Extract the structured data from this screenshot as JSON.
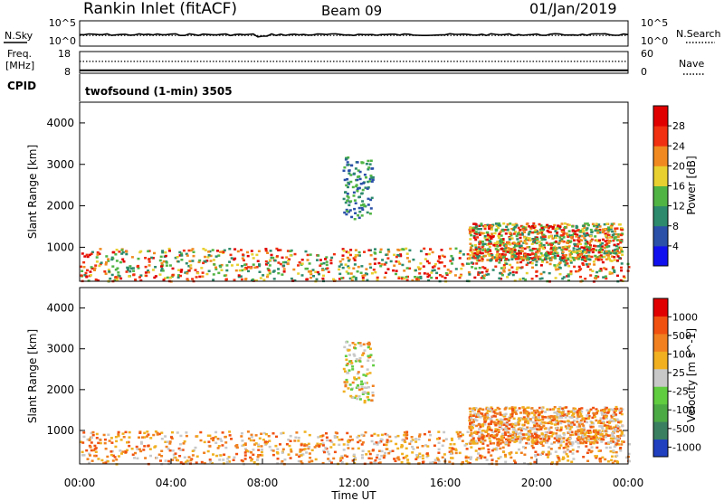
{
  "header": {
    "station": "Rankin Inlet (fitACF)",
    "beam": "Beam 09",
    "date": "01/Jan/2019"
  },
  "panels": {
    "noise": {
      "left_label": "N.Sky",
      "right_label": "N.Search",
      "left_ticks": [
        "10^5",
        "10^0"
      ],
      "right_ticks": [
        "10^5",
        "10^0"
      ],
      "sky_level": 0.45,
      "search_level": 0.45
    },
    "freq": {
      "left_label_1": "Freq.",
      "left_label_2": "[MHz]",
      "left_ticks": [
        "18",
        "8"
      ],
      "right_label": "Nave",
      "right_ticks": [
        "60",
        "0"
      ],
      "freq_level": 0.1,
      "nave_level": 0.55
    },
    "cpid": {
      "label": "CPID",
      "text": "twofsound (1-min) 3505"
    }
  },
  "chart_data": [
    {
      "type": "heatmap",
      "title": "",
      "ylabel": "Slant Range [km]",
      "xlabel": "",
      "ylim": [
        180,
        4500
      ],
      "yticks": [
        "1000",
        "2000",
        "3000",
        "4000"
      ],
      "colorbar": {
        "label": "Power [dB]",
        "ticks": [
          "4",
          "8",
          "12",
          "16",
          "20",
          "24",
          "28"
        ],
        "range": [
          0,
          31
        ],
        "colors": [
          "#1010ee",
          "#2a50a8",
          "#2d8a6c",
          "#50b444",
          "#e8d030",
          "#f08a20",
          "#f03010",
          "#e00000"
        ]
      },
      "scatter_regions": [
        {
          "t0": 0.0,
          "t1": 24.0,
          "r0": 200,
          "r1": 1000,
          "value": "strong"
        },
        {
          "t0": 17.0,
          "t1": 23.7,
          "r0": 700,
          "r1": 1600,
          "value": "strong"
        },
        {
          "t0": 11.5,
          "t1": 12.8,
          "r0": 1700,
          "r1": 3200,
          "value": "weak"
        }
      ]
    },
    {
      "type": "heatmap",
      "title": "",
      "ylabel": "Slant Range [km]",
      "xlabel": "Time UT",
      "ylim": [
        180,
        4500
      ],
      "yticks": [
        "1000",
        "2000",
        "3000",
        "4000"
      ],
      "xticks": [
        "00:00",
        "04:00",
        "08:00",
        "12:00",
        "16:00",
        "20:00",
        "00:00"
      ],
      "colorbar": {
        "label": "Velocity [m s^-1]",
        "ticks": [
          "1000",
          "500",
          "100",
          "25",
          "-25",
          "-100",
          "-500",
          "-1000"
        ],
        "colors": [
          "#2040c0",
          "#3a7f60",
          "#4caa44",
          "#60cc40",
          "#c8c8c8",
          "#f0b020",
          "#f08020",
          "#f05010",
          "#e00000"
        ]
      }
    }
  ]
}
